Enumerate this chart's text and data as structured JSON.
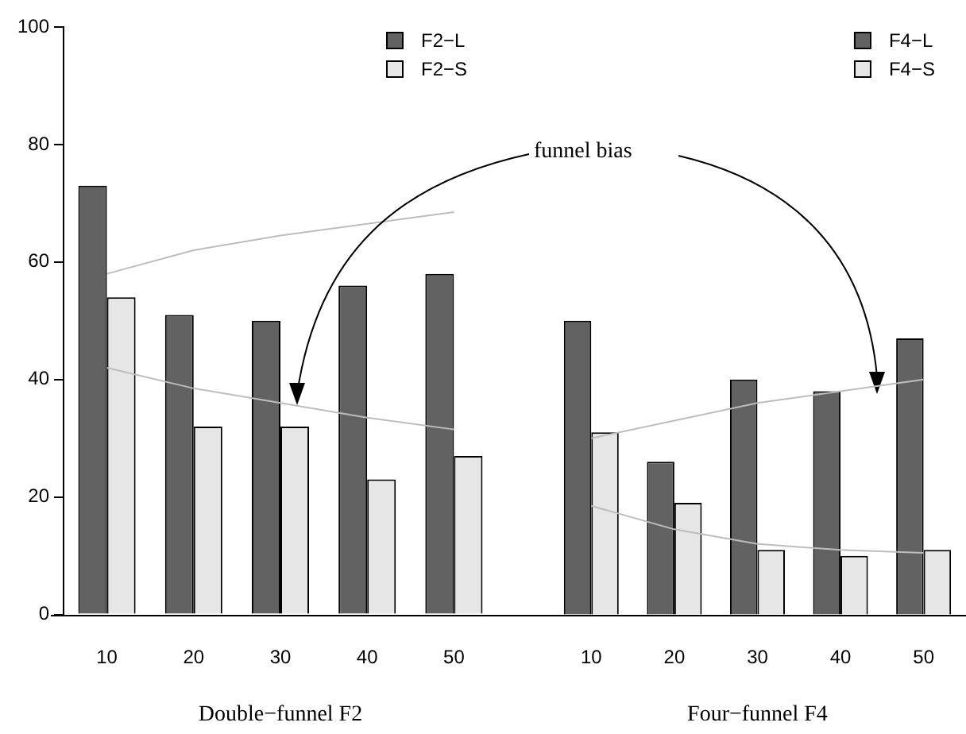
{
  "chart_data": [
    {
      "type": "bar",
      "categories": [
        "10",
        "20",
        "30",
        "40",
        "50"
      ],
      "xlabel": "Double−funnel F2",
      "series": [
        {
          "name": "F2−L",
          "color": "#626262",
          "values": [
            73,
            51,
            50,
            56,
            58
          ]
        },
        {
          "name": "F2−S",
          "color": "#e6e6e6",
          "values": [
            54,
            32,
            32,
            23,
            27
          ]
        },
        {
          "type": "line",
          "color": "#bdbdbd",
          "values": [
            58,
            62,
            64.5,
            66.5,
            68.5
          ]
        },
        {
          "type": "line",
          "color": "#bdbdbd",
          "values": [
            42,
            38.5,
            36,
            33.5,
            31.5
          ]
        }
      ],
      "ylim": [
        0,
        100
      ],
      "yticks": [
        0,
        20,
        40,
        60,
        80,
        100
      ],
      "grid": false,
      "legend": "top right",
      "annotations": [
        "funnel bias"
      ]
    },
    {
      "type": "bar",
      "categories": [
        "10",
        "20",
        "30",
        "40",
        "50"
      ],
      "xlabel": "Four−funnel F4",
      "series": [
        {
          "name": "F4−L",
          "color": "#626262",
          "values": [
            50,
            26,
            40,
            38,
            47
          ]
        },
        {
          "name": "F4−S",
          "color": "#e6e6e6",
          "values": [
            31,
            19,
            11,
            10,
            11
          ]
        },
        {
          "type": "line",
          "color": "#bdbdbd",
          "values": [
            30,
            33,
            36,
            38,
            40
          ]
        },
        {
          "type": "line",
          "color": "#bdbdbd",
          "values": [
            18.5,
            14.5,
            12,
            11,
            10.5
          ]
        }
      ],
      "ylim": [
        0,
        100
      ],
      "yticks": [
        0,
        20,
        40,
        60,
        80,
        100
      ],
      "grid": false,
      "legend": "top right",
      "tick_labels": "x"
    }
  ]
}
